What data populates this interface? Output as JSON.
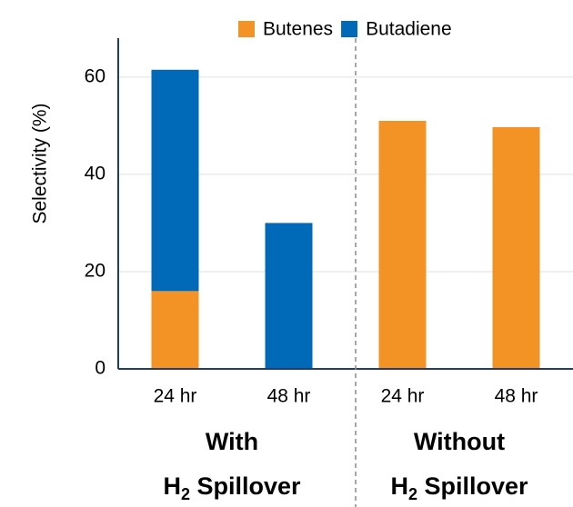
{
  "chart_data": {
    "type": "bar",
    "stacked": true,
    "y_label": "Selectivity (%)",
    "categories": [
      "24 hr",
      "48 hr",
      "24 hr",
      "48 hr"
    ],
    "series": [
      {
        "name": "Butenes",
        "color": "#f39325",
        "values": [
          16,
          0,
          51,
          49.7
        ]
      },
      {
        "name": "Butadiene",
        "color": "#0069b8",
        "values": [
          45.5,
          30,
          0,
          0
        ]
      }
    ],
    "ylim": [
      0,
      68
    ],
    "yticks": [
      0,
      20,
      40,
      60
    ],
    "grid": true,
    "legend": "top-right",
    "groups": [
      {
        "line1": "With",
        "h": "H",
        "sub": "2",
        "rest": " Spillover",
        "color": "#1a5aa8"
      },
      {
        "line1": "Without",
        "h": "H",
        "sub": "2",
        "rest": " Spillover",
        "color": "#e8141c"
      }
    ]
  }
}
